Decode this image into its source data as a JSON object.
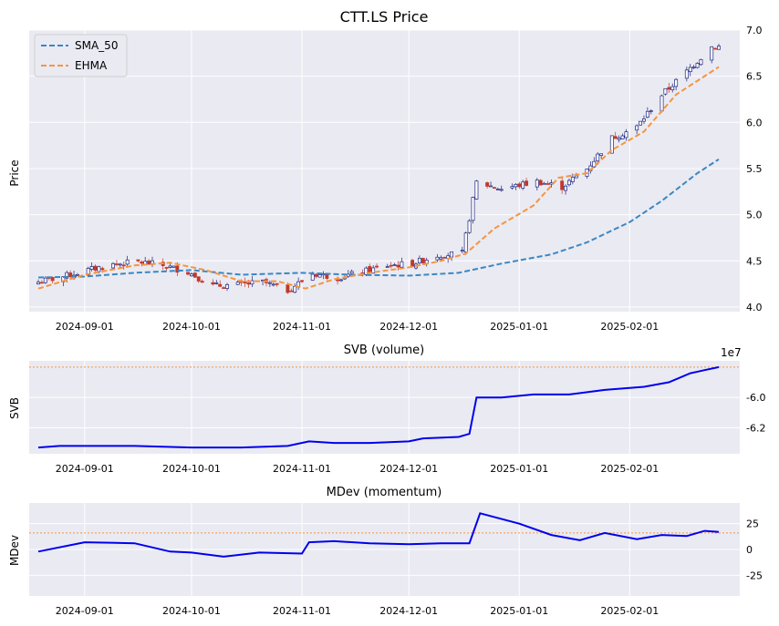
{
  "chart_data": [
    {
      "type": "candlestick",
      "title": "CTT.LS Price",
      "ylabel": "Price",
      "ylim": [
        3.95,
        7.0
      ],
      "yticks": [
        "4.0",
        "4.5",
        "5.0",
        "5.5",
        "6.0",
        "6.5",
        "7.0"
      ],
      "xticks": [
        "2024-09-01",
        "2024-10-01",
        "2024-11-01",
        "2024-12-01",
        "2025-01-01",
        "2025-02-01"
      ],
      "x_range": [
        "2024-08-19",
        "2025-02-26"
      ],
      "legend": {
        "position": "top-left",
        "entries": [
          {
            "name": "SMA_50",
            "color": "#3b87c4",
            "style": "dashed"
          },
          {
            "name": "EHMA",
            "color": "#f59540",
            "style": "dashed"
          }
        ]
      },
      "up_color": "#1a237e",
      "down_color": "#c0392b",
      "close_anchors": [
        [
          "2024-08-19",
          4.27
        ],
        [
          "2024-08-26",
          4.33
        ],
        [
          "2024-09-02",
          4.4
        ],
        [
          "2024-09-09",
          4.46
        ],
        [
          "2024-09-16",
          4.49
        ],
        [
          "2024-09-23",
          4.45
        ],
        [
          "2024-09-30",
          4.38
        ],
        [
          "2024-10-07",
          4.23
        ],
        [
          "2024-10-14",
          4.24
        ],
        [
          "2024-10-21",
          4.27
        ],
        [
          "2024-10-28",
          4.18
        ],
        [
          "2024-11-04",
          4.36
        ],
        [
          "2024-11-11",
          4.32
        ],
        [
          "2024-11-18",
          4.38
        ],
        [
          "2024-11-25",
          4.45
        ],
        [
          "2024-12-02",
          4.47
        ],
        [
          "2024-12-09",
          4.56
        ],
        [
          "2024-12-16",
          4.58
        ],
        [
          "2024-12-20",
          5.35
        ],
        [
          "2024-12-27",
          5.28
        ],
        [
          "2025-01-06",
          5.36
        ],
        [
          "2025-01-13",
          5.3
        ],
        [
          "2025-01-20",
          5.5
        ],
        [
          "2025-01-27",
          5.83
        ],
        [
          "2025-02-03",
          5.95
        ],
        [
          "2025-02-10",
          6.3
        ],
        [
          "2025-02-17",
          6.55
        ],
        [
          "2025-02-24",
          6.82
        ]
      ],
      "series": [
        {
          "name": "SMA_50",
          "points": [
            [
              "2024-08-19",
              4.32
            ],
            [
              "2024-09-01",
              4.33
            ],
            [
              "2024-09-15",
              4.37
            ],
            [
              "2024-10-01",
              4.4
            ],
            [
              "2024-10-15",
              4.35
            ],
            [
              "2024-11-01",
              4.37
            ],
            [
              "2024-11-15",
              4.35
            ],
            [
              "2024-12-01",
              4.34
            ],
            [
              "2024-12-15",
              4.37
            ],
            [
              "2024-12-27",
              4.47
            ],
            [
              "2025-01-10",
              4.57
            ],
            [
              "2025-01-20",
              4.7
            ],
            [
              "2025-02-01",
              4.92
            ],
            [
              "2025-02-10",
              5.15
            ],
            [
              "2025-02-20",
              5.45
            ],
            [
              "2025-02-26",
              5.6
            ]
          ]
        },
        {
          "name": "EHMA",
          "points": [
            [
              "2024-08-19",
              4.2
            ],
            [
              "2024-09-01",
              4.35
            ],
            [
              "2024-09-15",
              4.45
            ],
            [
              "2024-09-25",
              4.48
            ],
            [
              "2024-10-05",
              4.4
            ],
            [
              "2024-10-15",
              4.28
            ],
            [
              "2024-10-25",
              4.28
            ],
            [
              "2024-11-02",
              4.2
            ],
            [
              "2024-11-10",
              4.3
            ],
            [
              "2024-11-20",
              4.37
            ],
            [
              "2024-12-01",
              4.43
            ],
            [
              "2024-12-10",
              4.5
            ],
            [
              "2024-12-17",
              4.58
            ],
            [
              "2024-12-25",
              4.85
            ],
            [
              "2025-01-05",
              5.1
            ],
            [
              "2025-01-12",
              5.4
            ],
            [
              "2025-01-20",
              5.45
            ],
            [
              "2025-01-27",
              5.7
            ],
            [
              "2025-02-05",
              5.9
            ],
            [
              "2025-02-14",
              6.3
            ],
            [
              "2025-02-26",
              6.6
            ]
          ]
        }
      ]
    },
    {
      "type": "line",
      "title": "SVB (volume)",
      "ylabel": "SVB",
      "scale_label": "1e7",
      "ylim": [
        -6.35,
        -5.78
      ],
      "yticks": [
        "-6.0",
        "-6.2"
      ],
      "threshold": -5.8,
      "series": [
        {
          "name": "SVB",
          "points": [
            [
              "2024-08-19",
              -6.33
            ],
            [
              "2024-08-25",
              -6.32
            ],
            [
              "2024-09-15",
              -6.32
            ],
            [
              "2024-10-01",
              -6.33
            ],
            [
              "2024-10-15",
              -6.33
            ],
            [
              "2024-10-28",
              -6.32
            ],
            [
              "2024-11-03",
              -6.29
            ],
            [
              "2024-11-10",
              -6.3
            ],
            [
              "2024-11-20",
              -6.3
            ],
            [
              "2024-12-01",
              -6.29
            ],
            [
              "2024-12-05",
              -6.27
            ],
            [
              "2024-12-15",
              -6.26
            ],
            [
              "2024-12-18",
              -6.24
            ],
            [
              "2024-12-20",
              -6.0
            ],
            [
              "2024-12-27",
              -6.0
            ],
            [
              "2025-01-05",
              -5.98
            ],
            [
              "2025-01-15",
              -5.98
            ],
            [
              "2025-01-25",
              -5.95
            ],
            [
              "2025-02-05",
              -5.93
            ],
            [
              "2025-02-12",
              -5.9
            ],
            [
              "2025-02-18",
              -5.84
            ],
            [
              "2025-02-22",
              -5.82
            ],
            [
              "2025-02-26",
              -5.8
            ]
          ]
        }
      ]
    },
    {
      "type": "line",
      "title": "MDev (momentum)",
      "ylabel": "MDev",
      "ylim": [
        -45,
        45
      ],
      "yticks": [
        "25",
        "0",
        "-25"
      ],
      "threshold": 16,
      "series": [
        {
          "name": "MDev",
          "points": [
            [
              "2024-08-19",
              -2
            ],
            [
              "2024-09-01",
              7
            ],
            [
              "2024-09-15",
              6
            ],
            [
              "2024-09-25",
              -2
            ],
            [
              "2024-10-01",
              -3
            ],
            [
              "2024-10-10",
              -7
            ],
            [
              "2024-10-20",
              -3
            ],
            [
              "2024-11-01",
              -4
            ],
            [
              "2024-11-03",
              7
            ],
            [
              "2024-11-10",
              8
            ],
            [
              "2024-11-20",
              6
            ],
            [
              "2024-12-01",
              5
            ],
            [
              "2024-12-10",
              6
            ],
            [
              "2024-12-18",
              6
            ],
            [
              "2024-12-21",
              35
            ],
            [
              "2025-01-01",
              25
            ],
            [
              "2025-01-10",
              14
            ],
            [
              "2025-01-18",
              9
            ],
            [
              "2025-01-25",
              16
            ],
            [
              "2025-02-03",
              10
            ],
            [
              "2025-02-10",
              14
            ],
            [
              "2025-02-17",
              13
            ],
            [
              "2025-02-22",
              18
            ],
            [
              "2025-02-26",
              17
            ]
          ]
        }
      ]
    }
  ]
}
